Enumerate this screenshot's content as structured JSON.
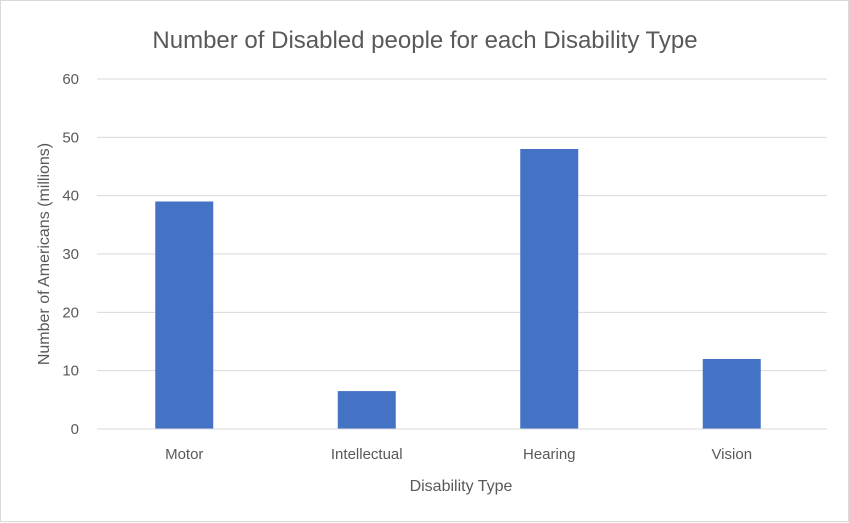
{
  "chart_data": {
    "type": "bar",
    "title": "Number of Disabled people for each Disability Type",
    "xlabel": "Disability Type",
    "ylabel": "Number of Americans (millions)",
    "categories": [
      "Motor",
      "Intellectual",
      "Hearing",
      "Vision"
    ],
    "values": [
      39,
      6.5,
      48,
      12
    ],
    "ylim": [
      0,
      60
    ],
    "yticks": [
      "0",
      "10",
      "20",
      "30",
      "40",
      "50",
      "60"
    ],
    "grid": true,
    "legend": "none",
    "bar_color": "#4472c4"
  }
}
